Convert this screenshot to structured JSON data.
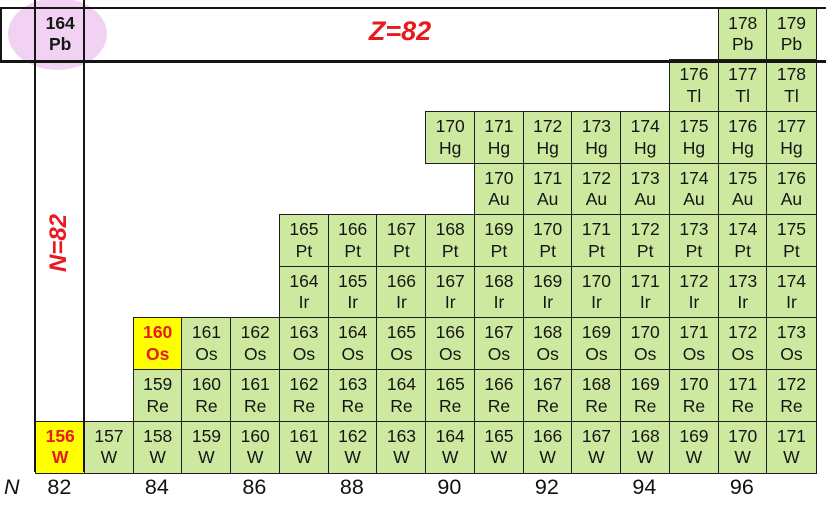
{
  "annotations": {
    "proton_line_label": "Z=82",
    "neutron_line_label": "N=82",
    "axis_label": "N"
  },
  "colors": {
    "cell_green": "#cde9a0",
    "cell_yellow": "#ffff00",
    "highlight_red": "#e8191f",
    "ellipse_pink": "#f2d2f2",
    "grid_line": "#1f1f1f"
  },
  "chart_data": {
    "type": "table",
    "description": "Section of the chart of nuclides near doubly magic 164Pb: element rows Pb to W versus neutron number N (82-97). Highlighted cells: 164Pb (pink ellipse), 160Os and 156W (yellow, red text). Red lines mark Z=82 and N=82.",
    "x_axis": {
      "label": "N",
      "ticks": [
        82,
        84,
        86,
        88,
        90,
        92,
        94,
        96
      ],
      "range": [
        82,
        97
      ]
    },
    "cell_format": "[mass_number_A, neutron_number_N, optional_highlight_style]",
    "rows": [
      {
        "element": "Pb",
        "Z": 82,
        "cells": [
          [
            164,
            82,
            "ellipse"
          ],
          [
            178,
            96
          ],
          [
            179,
            97
          ]
        ]
      },
      {
        "element": "Tl",
        "Z": 81,
        "cells": [
          [
            176,
            95
          ],
          [
            177,
            96
          ],
          [
            178,
            97
          ]
        ]
      },
      {
        "element": "Hg",
        "Z": 80,
        "cells": [
          [
            170,
            90
          ],
          [
            171,
            91
          ],
          [
            172,
            92
          ],
          [
            173,
            93
          ],
          [
            174,
            94
          ],
          [
            175,
            95
          ],
          [
            176,
            96
          ],
          [
            177,
            97
          ]
        ]
      },
      {
        "element": "Au",
        "Z": 79,
        "cells": [
          [
            170,
            91
          ],
          [
            171,
            92
          ],
          [
            172,
            93
          ],
          [
            173,
            94
          ],
          [
            174,
            95
          ],
          [
            175,
            96
          ],
          [
            176,
            97
          ]
        ]
      },
      {
        "element": "Pt",
        "Z": 78,
        "cells": [
          [
            165,
            87
          ],
          [
            166,
            88
          ],
          [
            167,
            89
          ],
          [
            168,
            90
          ],
          [
            169,
            91
          ],
          [
            170,
            92
          ],
          [
            171,
            93
          ],
          [
            172,
            94
          ],
          [
            173,
            95
          ],
          [
            174,
            96
          ],
          [
            175,
            97
          ]
        ]
      },
      {
        "element": "Ir",
        "Z": 77,
        "cells": [
          [
            164,
            87
          ],
          [
            165,
            88
          ],
          [
            166,
            89
          ],
          [
            167,
            90
          ],
          [
            168,
            91
          ],
          [
            169,
            92
          ],
          [
            170,
            93
          ],
          [
            171,
            94
          ],
          [
            172,
            95
          ],
          [
            173,
            96
          ],
          [
            174,
            97
          ]
        ]
      },
      {
        "element": "Os",
        "Z": 76,
        "cells": [
          [
            160,
            84,
            "yellow"
          ],
          [
            161,
            85
          ],
          [
            162,
            86
          ],
          [
            163,
            87
          ],
          [
            164,
            88
          ],
          [
            165,
            89
          ],
          [
            166,
            90
          ],
          [
            167,
            91
          ],
          [
            168,
            92
          ],
          [
            169,
            93
          ],
          [
            170,
            94
          ],
          [
            171,
            95
          ],
          [
            172,
            96
          ],
          [
            173,
            97
          ]
        ]
      },
      {
        "element": "Re",
        "Z": 75,
        "cells": [
          [
            159,
            84
          ],
          [
            160,
            85
          ],
          [
            161,
            86
          ],
          [
            162,
            87
          ],
          [
            163,
            88
          ],
          [
            164,
            89
          ],
          [
            165,
            90
          ],
          [
            166,
            91
          ],
          [
            167,
            92
          ],
          [
            168,
            93
          ],
          [
            169,
            94
          ],
          [
            170,
            95
          ],
          [
            171,
            96
          ],
          [
            172,
            97
          ]
        ]
      },
      {
        "element": "W",
        "Z": 74,
        "cells": [
          [
            156,
            82,
            "yellow"
          ],
          [
            157,
            83
          ],
          [
            158,
            84
          ],
          [
            159,
            85
          ],
          [
            160,
            86
          ],
          [
            161,
            87
          ],
          [
            162,
            88
          ],
          [
            163,
            89
          ],
          [
            164,
            90
          ],
          [
            165,
            91
          ],
          [
            166,
            92
          ],
          [
            167,
            93
          ],
          [
            168,
            94
          ],
          [
            169,
            95
          ],
          [
            170,
            96
          ],
          [
            171,
            97
          ]
        ]
      }
    ]
  }
}
